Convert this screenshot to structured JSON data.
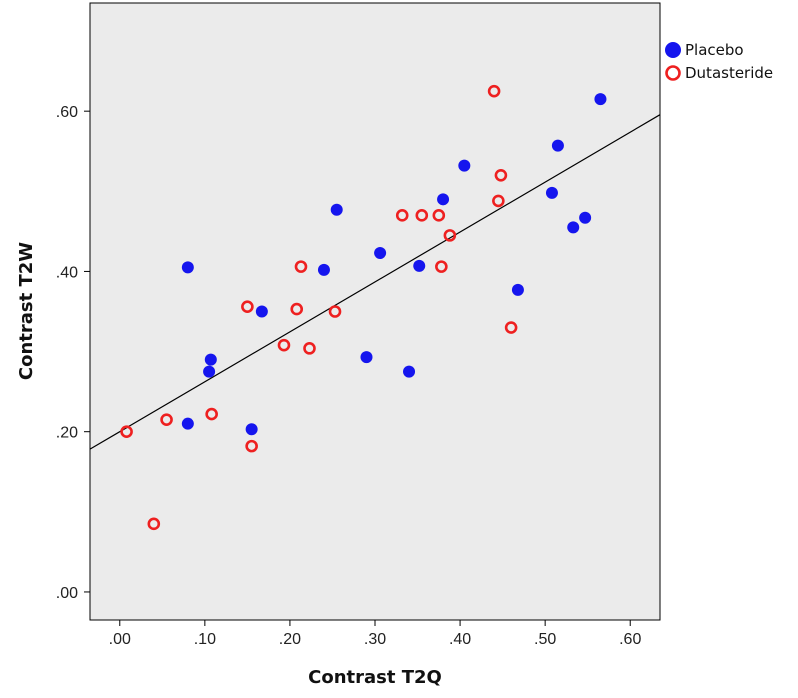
{
  "chart_data": {
    "type": "scatter",
    "title": "",
    "xlabel": "Contrast T2Q",
    "ylabel": "Contrast T2W",
    "xlim": [
      -0.035,
      0.635
    ],
    "ylim": [
      -0.035,
      0.735
    ],
    "x_ticks": [
      0,
      0.1,
      0.2,
      0.3,
      0.4,
      0.5,
      0.6
    ],
    "x_tick_labels": [
      ".00",
      ".10",
      ".20",
      ".30",
      ".40",
      ".50",
      ".60"
    ],
    "y_ticks": [
      0,
      0.2,
      0.4,
      0.6
    ],
    "y_tick_labels": [
      ".00",
      ".20",
      ".40",
      ".60"
    ],
    "grid": false,
    "legend_position": "top-right, outside plot",
    "fit_line": {
      "intercept": 0.2,
      "slope": 0.623
    },
    "colors": {
      "background": "#ebebeb",
      "placebo": "#1515ee",
      "dutasteride": "#ee2020",
      "fit_line": "#000000"
    },
    "series": [
      {
        "name": "Placebo",
        "marker": "filled-circle",
        "points": [
          [
            0.08,
            0.21
          ],
          [
            0.08,
            0.405
          ],
          [
            0.105,
            0.275
          ],
          [
            0.107,
            0.29
          ],
          [
            0.155,
            0.203
          ],
          [
            0.167,
            0.35
          ],
          [
            0.24,
            0.402
          ],
          [
            0.255,
            0.477
          ],
          [
            0.29,
            0.293
          ],
          [
            0.306,
            0.423
          ],
          [
            0.34,
            0.275
          ],
          [
            0.352,
            0.407
          ],
          [
            0.38,
            0.49
          ],
          [
            0.405,
            0.532
          ],
          [
            0.468,
            0.377
          ],
          [
            0.508,
            0.498
          ],
          [
            0.515,
            0.557
          ],
          [
            0.533,
            0.455
          ],
          [
            0.547,
            0.467
          ],
          [
            0.565,
            0.615
          ]
        ]
      },
      {
        "name": "Dutasteride",
        "marker": "open-circle",
        "points": [
          [
            0.008,
            0.2
          ],
          [
            0.04,
            0.085
          ],
          [
            0.055,
            0.215
          ],
          [
            0.108,
            0.222
          ],
          [
            0.15,
            0.356
          ],
          [
            0.155,
            0.182
          ],
          [
            0.193,
            0.308
          ],
          [
            0.208,
            0.353
          ],
          [
            0.213,
            0.406
          ],
          [
            0.223,
            0.304
          ],
          [
            0.253,
            0.35
          ],
          [
            0.332,
            0.47
          ],
          [
            0.355,
            0.47
          ],
          [
            0.375,
            0.47
          ],
          [
            0.378,
            0.406
          ],
          [
            0.388,
            0.445
          ],
          [
            0.44,
            0.625
          ],
          [
            0.445,
            0.488
          ],
          [
            0.448,
            0.52
          ],
          [
            0.46,
            0.33
          ]
        ]
      }
    ]
  }
}
